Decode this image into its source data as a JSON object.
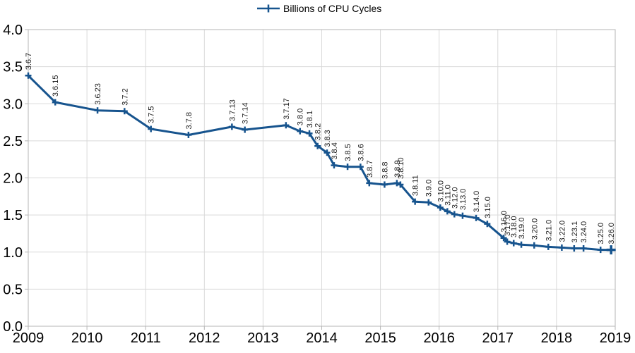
{
  "colors": {
    "series": "#17548e",
    "grid": "#d9d9d9",
    "frame": "#b5b5b5",
    "axis_text": "#000000",
    "label_text": "#1a1a1a",
    "background": "#ffffff"
  },
  "chart_data": {
    "type": "line",
    "title": "",
    "xlabel": "",
    "ylabel": "",
    "legend_position": "top",
    "grid": true,
    "xlim": [
      2009,
      2019
    ],
    "ylim": [
      0,
      4
    ],
    "x_ticks": [
      2009,
      2010,
      2011,
      2012,
      2013,
      2014,
      2015,
      2016,
      2017,
      2018,
      2019
    ],
    "y_ticks": [
      0,
      0.5,
      1,
      1.5,
      2,
      2.5,
      3,
      3.5,
      4
    ],
    "marker": "plus",
    "series": [
      {
        "name": "Billions of CPU Cycles",
        "points": [
          {
            "label": "3.6.7",
            "x": 2009.0,
            "y": 3.38
          },
          {
            "label": "3.6.15",
            "x": 2009.46,
            "y": 3.02
          },
          {
            "label": "3.6.23",
            "x": 2010.18,
            "y": 2.91
          },
          {
            "label": "3.7.2",
            "x": 2010.64,
            "y": 2.9
          },
          {
            "label": "3.7.5",
            "x": 2011.09,
            "y": 2.66
          },
          {
            "label": "3.7.8",
            "x": 2011.73,
            "y": 2.58
          },
          {
            "label": "3.7.13",
            "x": 2012.47,
            "y": 2.69
          },
          {
            "label": "3.7.14",
            "x": 2012.69,
            "y": 2.65
          },
          {
            "label": "3.7.17",
            "x": 2013.39,
            "y": 2.71
          },
          {
            "label": "3.8.0",
            "x": 2013.63,
            "y": 2.63
          },
          {
            "label": "3.8.1",
            "x": 2013.79,
            "y": 2.6
          },
          {
            "label": "3.8.2",
            "x": 2013.93,
            "y": 2.43
          },
          {
            "label": "3.8.3",
            "x": 2014.09,
            "y": 2.34
          },
          {
            "label": "3.8.4",
            "x": 2014.21,
            "y": 2.17
          },
          {
            "label": "3.8.5",
            "x": 2014.44,
            "y": 2.15
          },
          {
            "label": "3.8.6",
            "x": 2014.66,
            "y": 2.15
          },
          {
            "label": "3.8.7",
            "x": 2014.81,
            "y": 1.93
          },
          {
            "label": "3.8.8",
            "x": 2015.07,
            "y": 1.91
          },
          {
            "label": "3.8.9",
            "x": 2015.28,
            "y": 1.93
          },
          {
            "label": "3.8.10",
            "x": 2015.34,
            "y": 1.91
          },
          {
            "label": "3.8.11",
            "x": 2015.59,
            "y": 1.68
          },
          {
            "label": "3.9.0",
            "x": 2015.82,
            "y": 1.67
          },
          {
            "label": "3.10.0",
            "x": 2016.02,
            "y": 1.6
          },
          {
            "label": "3.11.0",
            "x": 2016.14,
            "y": 1.55
          },
          {
            "label": "3.12.0",
            "x": 2016.26,
            "y": 1.51
          },
          {
            "label": "3.13.0",
            "x": 2016.4,
            "y": 1.49
          },
          {
            "label": "3.14.0",
            "x": 2016.63,
            "y": 1.46
          },
          {
            "label": "3.15.0",
            "x": 2016.82,
            "y": 1.38
          },
          {
            "label": "3.16.0",
            "x": 2017.1,
            "y": 1.19
          },
          {
            "label": "3.17.0",
            "x": 2017.16,
            "y": 1.14
          },
          {
            "label": "3.18.0",
            "x": 2017.27,
            "y": 1.12
          },
          {
            "label": "3.19.0",
            "x": 2017.4,
            "y": 1.1
          },
          {
            "label": "3.20.0",
            "x": 2017.62,
            "y": 1.09
          },
          {
            "label": "3.21.0",
            "x": 2017.86,
            "y": 1.07
          },
          {
            "label": "3.22.0",
            "x": 2018.09,
            "y": 1.06
          },
          {
            "label": "3.23.1",
            "x": 2018.3,
            "y": 1.05
          },
          {
            "label": "3.24.0",
            "x": 2018.46,
            "y": 1.05
          },
          {
            "label": "3.25.0",
            "x": 2018.75,
            "y": 1.03
          },
          {
            "label": "3.26.0",
            "x": 2018.93,
            "y": 1.03
          }
        ]
      }
    ]
  }
}
